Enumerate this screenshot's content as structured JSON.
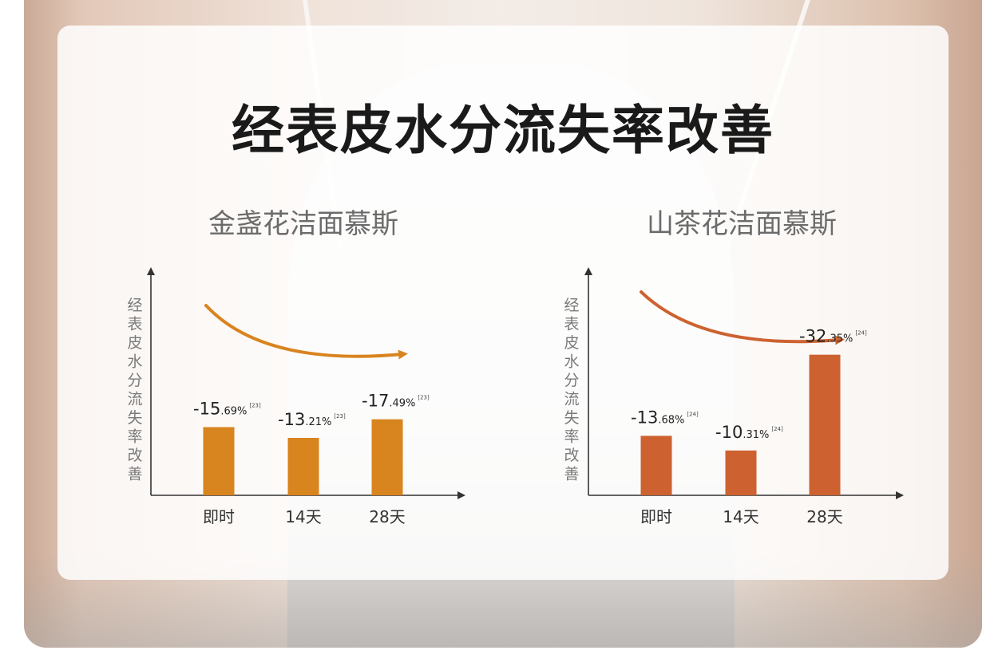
{
  "title": "经表皮水分流失率改善",
  "chart_data": [
    {
      "type": "bar",
      "title": "金盏花洁面慕斯",
      "ylabel": "经表皮水分流失率改善",
      "xlabel": "",
      "categories": [
        "即时",
        "14天",
        "28天"
      ],
      "values": [
        -15.69,
        -13.21,
        -17.49
      ],
      "labels": [
        {
          "main": "-15",
          "decimal": ".69%",
          "ref": "[23]"
        },
        {
          "main": "-13",
          "decimal": ".21%",
          "ref": "[23]"
        },
        {
          "main": "-17",
          "decimal": ".49%",
          "ref": "[23]"
        }
      ],
      "color": "#D8841F",
      "trend_arrow_color": "#D8841F",
      "grid": false
    },
    {
      "type": "bar",
      "title": "山茶花洁面慕斯",
      "ylabel": "经表皮水分流失率改善",
      "xlabel": "",
      "categories": [
        "即时",
        "14天",
        "28天"
      ],
      "values": [
        -13.68,
        -10.31,
        -32.35
      ],
      "labels": [
        {
          "main": "-13",
          "decimal": ".68%",
          "ref": "[24]"
        },
        {
          "main": "-10",
          "decimal": ".31%",
          "ref": "[24]"
        },
        {
          "main": "-32",
          "decimal": ".35%",
          "ref": "[24]"
        }
      ],
      "color": "#CD6230",
      "trend_arrow_color": "#CD6230",
      "grid": false
    }
  ]
}
